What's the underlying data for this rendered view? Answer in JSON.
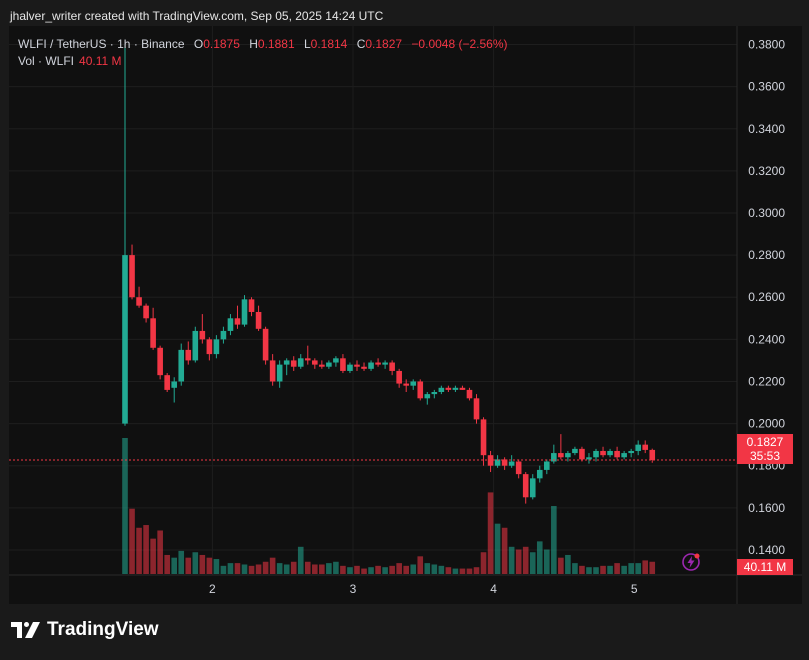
{
  "caption": "jhalver_writer created with TradingView.com, Sep 05, 2025 14:24 UTC",
  "legend": {
    "symbol": "WLFI / TetherUS · 1h · Binance",
    "o_label": "O",
    "o_value": "0.1875",
    "h_label": "H",
    "h_value": "0.1881",
    "l_label": "L",
    "l_value": "0.1814",
    "c_label": "C",
    "c_value": "0.1827",
    "change": "−0.0048 (−2.56%)",
    "vol_label": "Vol · WLFI",
    "vol_value": "40.11 M"
  },
  "price_tag": {
    "price": "0.1827",
    "countdown": "35:53"
  },
  "volume_tag": "40.11 M",
  "brand": {
    "name": "TradingView"
  },
  "colors": {
    "up": "#22ab94",
    "down": "#f23645",
    "background": "#101010",
    "grid": "#1e1e1e"
  },
  "chart_data": {
    "type": "candlestick",
    "ylim": [
      0.13,
      0.385
    ],
    "y_ticks": [
      "0.3800",
      "0.3600",
      "0.3400",
      "0.3200",
      "0.3000",
      "0.2800",
      "0.2600",
      "0.2400",
      "0.2200",
      "0.2000",
      "0.1800",
      "0.1600",
      "0.1400"
    ],
    "x_ticks": [
      "2",
      "3",
      "4",
      "5"
    ],
    "x_tick_index": [
      13,
      33,
      53,
      73
    ],
    "last_price": 0.1827,
    "ohlc": [
      [
        0.2,
        0.38,
        0.199,
        0.28
      ],
      [
        0.28,
        0.285,
        0.259,
        0.26
      ],
      [
        0.26,
        0.265,
        0.255,
        0.256
      ],
      [
        0.256,
        0.257,
        0.248,
        0.25
      ],
      [
        0.25,
        0.255,
        0.235,
        0.236
      ],
      [
        0.236,
        0.237,
        0.221,
        0.223
      ],
      [
        0.223,
        0.224,
        0.215,
        0.216
      ],
      [
        0.217,
        0.222,
        0.21,
        0.22
      ],
      [
        0.22,
        0.238,
        0.218,
        0.235
      ],
      [
        0.235,
        0.239,
        0.228,
        0.23
      ],
      [
        0.23,
        0.246,
        0.229,
        0.244
      ],
      [
        0.244,
        0.252,
        0.238,
        0.24
      ],
      [
        0.24,
        0.241,
        0.23,
        0.233
      ],
      [
        0.233,
        0.242,
        0.231,
        0.24
      ],
      [
        0.24,
        0.246,
        0.238,
        0.244
      ],
      [
        0.244,
        0.252,
        0.242,
        0.25
      ],
      [
        0.25,
        0.256,
        0.245,
        0.247
      ],
      [
        0.247,
        0.261,
        0.246,
        0.259
      ],
      [
        0.259,
        0.26,
        0.251,
        0.253
      ],
      [
        0.253,
        0.256,
        0.244,
        0.245
      ],
      [
        0.245,
        0.246,
        0.228,
        0.23
      ],
      [
        0.23,
        0.233,
        0.218,
        0.22
      ],
      [
        0.22,
        0.23,
        0.217,
        0.228
      ],
      [
        0.228,
        0.231,
        0.223,
        0.23
      ],
      [
        0.23,
        0.232,
        0.225,
        0.227
      ],
      [
        0.227,
        0.233,
        0.226,
        0.231
      ],
      [
        0.231,
        0.237,
        0.228,
        0.23
      ],
      [
        0.23,
        0.231,
        0.226,
        0.228
      ],
      [
        0.228,
        0.23,
        0.226,
        0.227
      ],
      [
        0.227,
        0.23,
        0.226,
        0.229
      ],
      [
        0.229,
        0.232,
        0.227,
        0.231
      ],
      [
        0.231,
        0.233,
        0.224,
        0.225
      ],
      [
        0.225,
        0.229,
        0.224,
        0.228
      ],
      [
        0.228,
        0.23,
        0.225,
        0.227
      ],
      [
        0.227,
        0.229,
        0.225,
        0.226
      ],
      [
        0.226,
        0.23,
        0.225,
        0.229
      ],
      [
        0.229,
        0.231,
        0.227,
        0.228
      ],
      [
        0.228,
        0.23,
        0.226,
        0.229
      ],
      [
        0.229,
        0.23,
        0.223,
        0.225
      ],
      [
        0.225,
        0.226,
        0.217,
        0.219
      ],
      [
        0.219,
        0.221,
        0.215,
        0.218
      ],
      [
        0.218,
        0.221,
        0.216,
        0.22
      ],
      [
        0.22,
        0.221,
        0.211,
        0.212
      ],
      [
        0.212,
        0.215,
        0.209,
        0.214
      ],
      [
        0.214,
        0.216,
        0.212,
        0.215
      ],
      [
        0.215,
        0.218,
        0.214,
        0.217
      ],
      [
        0.217,
        0.218,
        0.215,
        0.216
      ],
      [
        0.216,
        0.218,
        0.215,
        0.217
      ],
      [
        0.217,
        0.218,
        0.216,
        0.216
      ],
      [
        0.216,
        0.217,
        0.211,
        0.212
      ],
      [
        0.212,
        0.214,
        0.2,
        0.202
      ],
      [
        0.202,
        0.203,
        0.18,
        0.185
      ],
      [
        0.185,
        0.187,
        0.177,
        0.18
      ],
      [
        0.18,
        0.185,
        0.179,
        0.183
      ],
      [
        0.183,
        0.184,
        0.178,
        0.18
      ],
      [
        0.18,
        0.185,
        0.179,
        0.182
      ],
      [
        0.182,
        0.183,
        0.174,
        0.176
      ],
      [
        0.176,
        0.177,
        0.162,
        0.165
      ],
      [
        0.165,
        0.176,
        0.164,
        0.174
      ],
      [
        0.174,
        0.18,
        0.172,
        0.178
      ],
      [
        0.178,
        0.183,
        0.176,
        0.182
      ],
      [
        0.182,
        0.19,
        0.181,
        0.186
      ],
      [
        0.186,
        0.195,
        0.183,
        0.184
      ],
      [
        0.184,
        0.187,
        0.182,
        0.186
      ],
      [
        0.186,
        0.189,
        0.185,
        0.188
      ],
      [
        0.188,
        0.189,
        0.182,
        0.183
      ],
      [
        0.183,
        0.186,
        0.181,
        0.184
      ],
      [
        0.184,
        0.188,
        0.182,
        0.187
      ],
      [
        0.187,
        0.189,
        0.184,
        0.185
      ],
      [
        0.185,
        0.188,
        0.184,
        0.187
      ],
      [
        0.187,
        0.189,
        0.183,
        0.184
      ],
      [
        0.184,
        0.187,
        0.183,
        0.186
      ],
      [
        0.186,
        0.188,
        0.184,
        0.187
      ],
      [
        0.187,
        0.192,
        0.185,
        0.19
      ],
      [
        0.19,
        0.192,
        0.186,
        0.1875
      ],
      [
        0.1875,
        0.1881,
        0.1814,
        0.1827
      ]
    ],
    "volume": [
      100,
      48,
      34,
      36,
      26,
      32,
      14,
      12,
      17,
      12,
      16,
      14,
      12,
      11,
      6,
      8,
      8,
      7,
      6,
      7,
      9,
      12,
      8,
      7,
      9,
      20,
      9,
      7,
      7,
      8,
      9,
      6,
      5,
      6,
      4,
      5,
      6,
      5,
      6,
      8,
      6,
      7,
      13,
      8,
      7,
      6,
      5,
      4,
      4,
      4,
      5,
      16,
      60,
      37,
      34,
      20,
      18,
      20,
      16,
      24,
      18,
      50,
      12,
      14,
      8,
      6,
      5,
      5,
      6,
      6,
      8,
      6,
      8,
      8,
      10,
      9
    ]
  }
}
